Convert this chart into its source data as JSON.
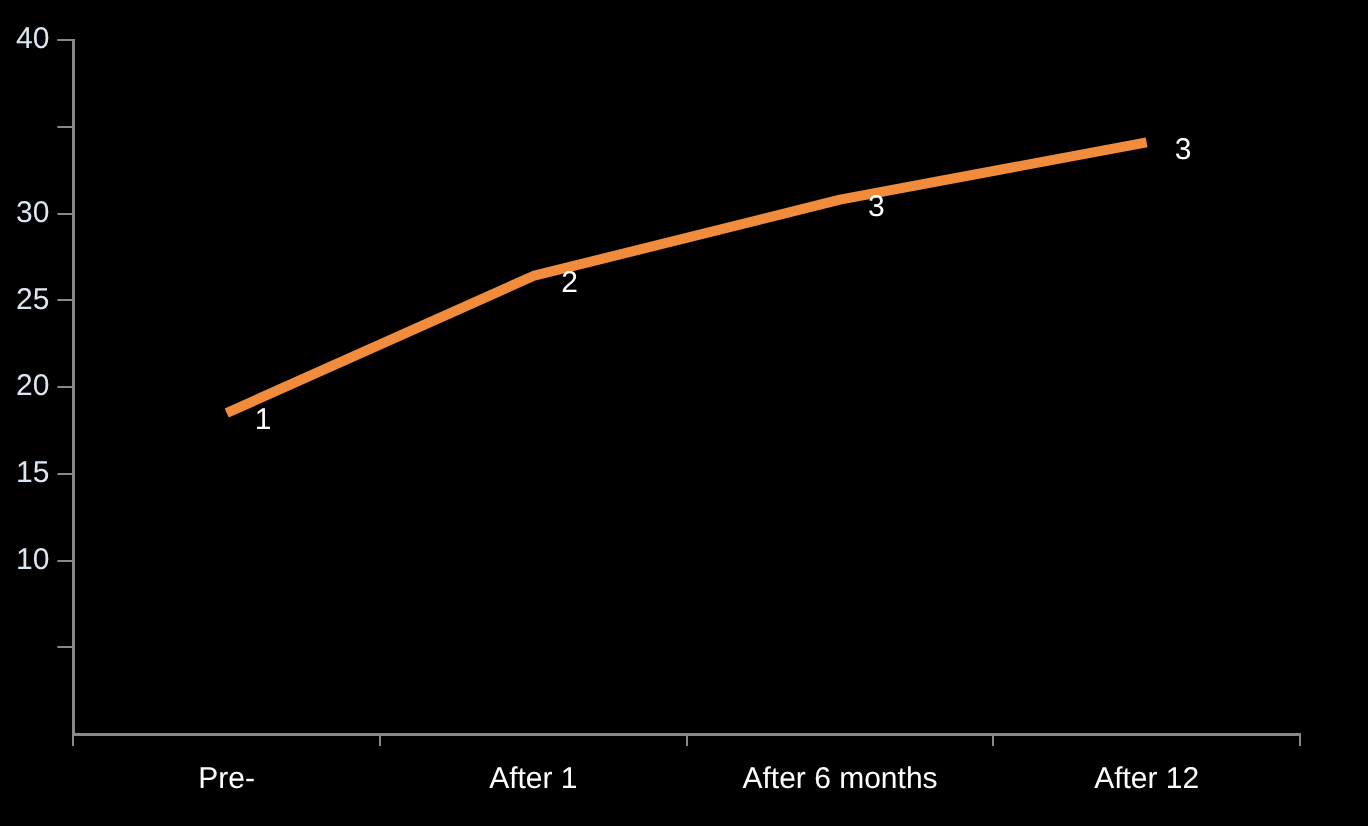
{
  "chart_data": {
    "type": "line",
    "categories": [
      "Pre-",
      "After 1",
      "After 6 months",
      "After 12"
    ],
    "series": [
      {
        "color": "#f08c3c",
        "values": [
          18.5,
          26.4,
          30.8,
          34.1
        ]
      }
    ],
    "ylim": [
      0,
      40
    ],
    "yticks": [
      40,
      {
        "value": 35,
        "label": null
      },
      30,
      25,
      20,
      15,
      10,
      {
        "value": 5,
        "label": null
      }
    ],
    "annotations": [
      {
        "text": "1",
        "x": "Pre-",
        "y": 18.5
      },
      {
        "text": "2",
        "x": "After 1",
        "y": 26.4
      },
      {
        "text": "3",
        "x": "After 6 months",
        "y": 30.8
      },
      {
        "text": "3",
        "x": "After 12",
        "y": 34.1
      }
    ],
    "grid": false,
    "legend": false,
    "marker": "none",
    "line_style": "solid"
  }
}
